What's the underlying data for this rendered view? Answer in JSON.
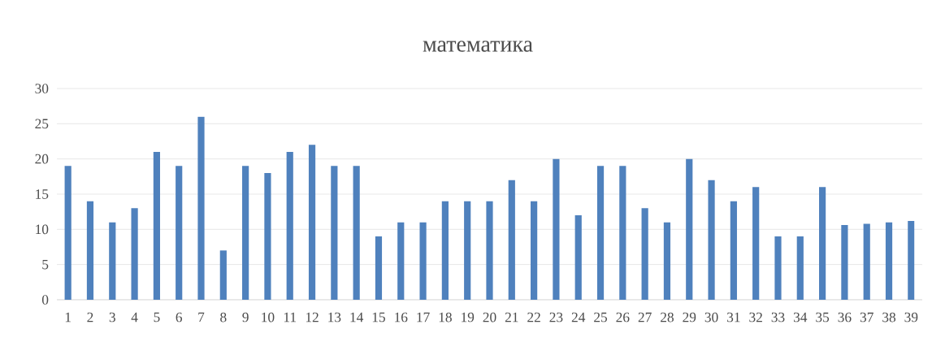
{
  "chart_data": {
    "type": "bar",
    "title": "математика",
    "categories": [
      "1",
      "2",
      "3",
      "4",
      "5",
      "6",
      "7",
      "8",
      "9",
      "10",
      "11",
      "12",
      "13",
      "14",
      "15",
      "16",
      "17",
      "18",
      "19",
      "20",
      "21",
      "22",
      "23",
      "24",
      "25",
      "26",
      "27",
      "28",
      "29",
      "30",
      "31",
      "32",
      "33",
      "34",
      "35",
      "36",
      "37",
      "38",
      "39"
    ],
    "values": [
      19,
      14,
      11,
      13,
      21,
      19,
      26,
      7,
      19,
      18,
      21,
      22,
      19,
      19,
      9,
      11,
      11,
      14,
      14,
      14,
      17,
      14,
      20,
      12,
      19,
      19,
      13,
      11,
      20,
      17,
      14,
      16,
      9,
      9,
      16,
      10.6,
      10.8,
      11,
      11.2
    ],
    "color": "#4f81bd",
    "ylim": [
      0,
      30
    ],
    "yticks": [
      0,
      5,
      10,
      15,
      20,
      25,
      30
    ],
    "grid": "y"
  }
}
